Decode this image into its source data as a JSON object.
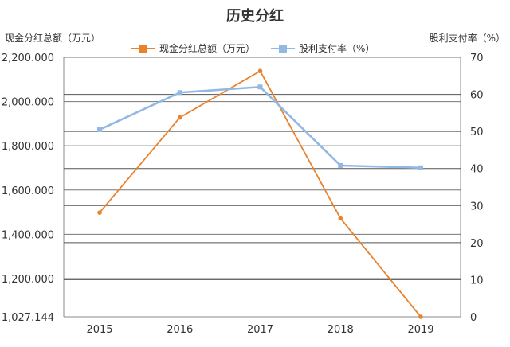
{
  "chart_data": {
    "type": "line",
    "title": "历史分红",
    "categories": [
      "2015",
      "2016",
      "2017",
      "2018",
      "2019"
    ],
    "y_left": {
      "label": "现金分红总额（万元）",
      "min": 1027.144,
      "max": 2200.0,
      "ticks": [
        "2,200.000",
        "2,000.000",
        "1,800.000",
        "1,600.000",
        "1,400.000",
        "1,200.000",
        "1,027.144"
      ],
      "tick_values": [
        2200,
        2000,
        1800,
        1600,
        1400,
        1200,
        1027.144
      ]
    },
    "y_right": {
      "label": "股利支付率（%）",
      "min": 0,
      "max": 70,
      "ticks": [
        "70",
        "60",
        "50",
        "40",
        "30",
        "20",
        "10",
        "0"
      ],
      "tick_values": [
        70,
        60,
        50,
        40,
        30,
        20,
        10,
        0
      ]
    },
    "series": [
      {
        "name": "现金分红总额（万元）",
        "axis": "left",
        "color": "#e8822c",
        "values": [
          1498,
          1928,
          2138,
          1472,
          1027.144
        ]
      },
      {
        "name": "股利支付率（%）",
        "axis": "right",
        "color": "#93b8e4",
        "values": [
          50.5,
          60.5,
          62,
          40.8,
          40.2
        ]
      }
    ],
    "grid": true,
    "legend_position": "top"
  }
}
